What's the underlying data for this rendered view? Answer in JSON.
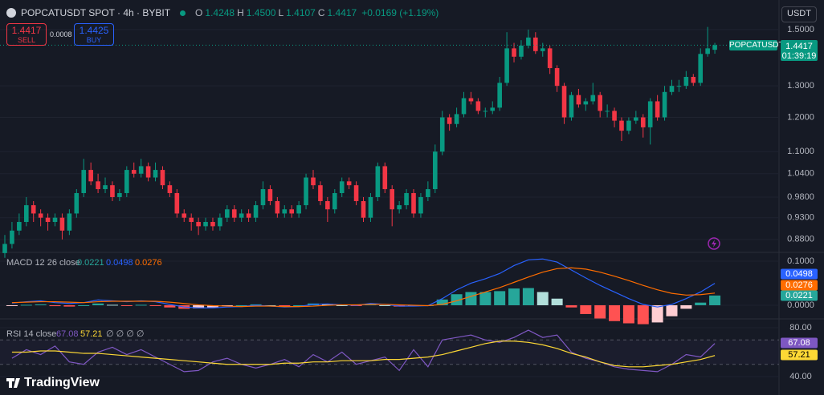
{
  "header": {
    "symbol": "POPCATUSDT SPOT · 4h · BYBIT",
    "ohlc": [
      {
        "key": "O",
        "value": "1.4248"
      },
      {
        "key": "H",
        "value": "1.4500"
      },
      {
        "key": "L",
        "value": "1.4107"
      },
      {
        "key": "C",
        "value": "1.4417"
      }
    ],
    "change": "+0.0169 (+1.19%)",
    "sell": {
      "price": "1.4417",
      "label": "SELL"
    },
    "spread": "0.0008",
    "buy": {
      "price": "1.4425",
      "label": "BUY"
    },
    "currency": "USDT"
  },
  "price": {
    "type": "candlestick",
    "log_scale": true,
    "up_color": "#089981",
    "down_color": "#f23645",
    "ylim": [
      0.855,
      1.617
    ],
    "yticks": [
      {
        "value": 1.5,
        "label": "1.5000"
      },
      {
        "value": 1.3,
        "label": "1.3000"
      },
      {
        "value": 1.2,
        "label": "1.2000"
      },
      {
        "value": 1.1,
        "label": "1.1000"
      },
      {
        "value": 1.04,
        "label": "1.0400"
      },
      {
        "value": 0.98,
        "label": "0.9800"
      },
      {
        "value": 0.93,
        "label": "0.9300"
      },
      {
        "value": 0.88,
        "label": "0.8800"
      }
    ],
    "last": {
      "symbol": "POPCATUSDT",
      "price": "1.4417",
      "countdown": "01:39:19"
    },
    "candles": [
      [
        0.85,
        0.89,
        0.84,
        0.87
      ],
      [
        0.87,
        0.92,
        0.86,
        0.9
      ],
      [
        0.9,
        0.94,
        0.89,
        0.92
      ],
      [
        0.92,
        0.98,
        0.91,
        0.96
      ],
      [
        0.96,
        0.97,
        0.92,
        0.94
      ],
      [
        0.94,
        0.95,
        0.91,
        0.93
      ],
      [
        0.93,
        0.94,
        0.9,
        0.92
      ],
      [
        0.92,
        0.94,
        0.91,
        0.93
      ],
      [
        0.93,
        0.94,
        0.88,
        0.9
      ],
      [
        0.9,
        0.95,
        0.89,
        0.94
      ],
      [
        0.94,
        1.0,
        0.93,
        0.99
      ],
      [
        0.99,
        1.08,
        0.98,
        1.05
      ],
      [
        1.05,
        1.07,
        1.01,
        1.02
      ],
      [
        1.02,
        1.04,
        0.99,
        1.0
      ],
      [
        1.0,
        1.03,
        0.99,
        1.01
      ],
      [
        1.01,
        1.02,
        0.97,
        0.98
      ],
      [
        0.98,
        1.0,
        0.97,
        0.99
      ],
      [
        0.99,
        1.06,
        0.98,
        1.05
      ],
      [
        1.05,
        1.07,
        1.03,
        1.04
      ],
      [
        1.04,
        1.08,
        1.03,
        1.06
      ],
      [
        1.06,
        1.07,
        1.02,
        1.03
      ],
      [
        1.03,
        1.07,
        1.02,
        1.05
      ],
      [
        1.05,
        1.06,
        1.0,
        1.01
      ],
      [
        1.01,
        1.02,
        0.98,
        0.99
      ],
      [
        0.99,
        1.0,
        0.93,
        0.94
      ],
      [
        0.94,
        0.95,
        0.92,
        0.93
      ],
      [
        0.93,
        0.94,
        0.9,
        0.92
      ],
      [
        0.92,
        0.93,
        0.89,
        0.91
      ],
      [
        0.91,
        0.93,
        0.9,
        0.92
      ],
      [
        0.92,
        0.93,
        0.9,
        0.91
      ],
      [
        0.91,
        0.94,
        0.9,
        0.93
      ],
      [
        0.93,
        0.96,
        0.92,
        0.95
      ],
      [
        0.95,
        0.96,
        0.92,
        0.93
      ],
      [
        0.93,
        0.95,
        0.92,
        0.94
      ],
      [
        0.94,
        0.95,
        0.92,
        0.93
      ],
      [
        0.93,
        0.97,
        0.92,
        0.96
      ],
      [
        0.96,
        1.02,
        0.95,
        1.0
      ],
      [
        1.0,
        1.01,
        0.96,
        0.97
      ],
      [
        0.97,
        0.98,
        0.93,
        0.94
      ],
      [
        0.94,
        0.96,
        0.93,
        0.95
      ],
      [
        0.95,
        0.96,
        0.93,
        0.94
      ],
      [
        0.94,
        0.97,
        0.93,
        0.96
      ],
      [
        0.96,
        1.04,
        0.95,
        1.03
      ],
      [
        1.03,
        1.05,
        1.0,
        1.01
      ],
      [
        1.01,
        1.02,
        0.96,
        0.97
      ],
      [
        0.97,
        0.98,
        0.92,
        0.95
      ],
      [
        0.95,
        1.0,
        0.94,
        0.99
      ],
      [
        0.99,
        1.03,
        0.98,
        1.02
      ],
      [
        1.02,
        1.03,
        1.0,
        1.01
      ],
      [
        1.01,
        1.02,
        0.96,
        0.97
      ],
      [
        0.97,
        0.98,
        0.92,
        0.93
      ],
      [
        0.93,
        0.99,
        0.92,
        0.98
      ],
      [
        0.98,
        1.07,
        0.97,
        1.06
      ],
      [
        1.06,
        1.07,
        0.99,
        1.0
      ],
      [
        1.0,
        1.01,
        0.91,
        0.95
      ],
      [
        0.95,
        0.97,
        0.94,
        0.96
      ],
      [
        0.96,
        1.0,
        0.95,
        0.99
      ],
      [
        0.99,
        1.0,
        0.93,
        0.94
      ],
      [
        0.94,
        0.99,
        0.93,
        0.98
      ],
      [
        0.98,
        1.02,
        0.97,
        1.0
      ],
      [
        1.0,
        1.12,
        0.99,
        1.1
      ],
      [
        1.1,
        1.22,
        1.09,
        1.2
      ],
      [
        1.2,
        1.21,
        1.16,
        1.18
      ],
      [
        1.18,
        1.23,
        1.17,
        1.21
      ],
      [
        1.21,
        1.28,
        1.2,
        1.26
      ],
      [
        1.26,
        1.28,
        1.24,
        1.25
      ],
      [
        1.25,
        1.26,
        1.21,
        1.22
      ],
      [
        1.22,
        1.23,
        1.2,
        1.22
      ],
      [
        1.22,
        1.25,
        1.21,
        1.23
      ],
      [
        1.23,
        1.33,
        1.22,
        1.31
      ],
      [
        1.31,
        1.49,
        1.3,
        1.43
      ],
      [
        1.43,
        1.45,
        1.38,
        1.4
      ],
      [
        1.4,
        1.46,
        1.39,
        1.44
      ],
      [
        1.44,
        1.5,
        1.43,
        1.47
      ],
      [
        1.47,
        1.49,
        1.41,
        1.42
      ],
      [
        1.42,
        1.45,
        1.4,
        1.43
      ],
      [
        1.43,
        1.44,
        1.34,
        1.36
      ],
      [
        1.36,
        1.37,
        1.28,
        1.3
      ],
      [
        1.3,
        1.31,
        1.18,
        1.2
      ],
      [
        1.2,
        1.28,
        1.19,
        1.27
      ],
      [
        1.27,
        1.29,
        1.23,
        1.24
      ],
      [
        1.24,
        1.26,
        1.22,
        1.25
      ],
      [
        1.25,
        1.31,
        1.24,
        1.27
      ],
      [
        1.27,
        1.28,
        1.2,
        1.22
      ],
      [
        1.22,
        1.24,
        1.2,
        1.22
      ],
      [
        1.22,
        1.23,
        1.17,
        1.19
      ],
      [
        1.19,
        1.2,
        1.13,
        1.16
      ],
      [
        1.16,
        1.2,
        1.15,
        1.19
      ],
      [
        1.19,
        1.22,
        1.18,
        1.2
      ],
      [
        1.2,
        1.21,
        1.14,
        1.17
      ],
      [
        1.17,
        1.26,
        1.12,
        1.25
      ],
      [
        1.25,
        1.27,
        1.19,
        1.2
      ],
      [
        1.2,
        1.3,
        1.19,
        1.28
      ],
      [
        1.28,
        1.32,
        1.27,
        1.3
      ],
      [
        1.3,
        1.32,
        1.28,
        1.3
      ],
      [
        1.3,
        1.35,
        1.29,
        1.33
      ],
      [
        1.33,
        1.34,
        1.3,
        1.31
      ],
      [
        1.31,
        1.43,
        1.3,
        1.41
      ],
      [
        1.41,
        1.51,
        1.4,
        1.43
      ],
      [
        1.4248,
        1.45,
        1.4107,
        1.4417
      ]
    ]
  },
  "macd": {
    "type": "line",
    "title": "MACD 12 26 close",
    "ylim": [
      -0.0255,
      0.1145
    ],
    "yticks": [
      {
        "value": 0.1,
        "label": "0.1000"
      },
      {
        "value": 0,
        "label": "0.0000"
      }
    ],
    "histogram": {
      "colors": [
        "#26a69a",
        "#b2dfdb",
        "#ff5252",
        "#ffcdd2"
      ],
      "values": [
        -0.001,
        0.001,
        0.002,
        -0.002,
        -0.003,
        0.0,
        0.004,
        0.001,
        -0.001,
        0.001,
        -0.001,
        -0.005,
        -0.008,
        -0.007,
        -0.005,
        -0.002,
        0.0,
        0.002,
        0.0,
        -0.001,
        0.0,
        0.004,
        0.003,
        0.0,
        -0.001,
        0.002,
        0.0,
        -0.003,
        -0.002,
        0.0,
        0.013,
        0.025,
        0.03,
        0.03,
        0.032,
        0.038,
        0.039,
        0.03,
        0.015,
        -0.005,
        -0.02,
        -0.03,
        -0.036,
        -0.041,
        -0.043,
        -0.039,
        -0.025,
        -0.008,
        0.006,
        0.0221
      ]
    },
    "series": [
      {
        "name": "MACD",
        "color": "#2962ff",
        "values": [
          0.005,
          0.008,
          0.01,
          0.006,
          0.004,
          0.006,
          0.012,
          0.01,
          0.008,
          0.01,
          0.008,
          0.002,
          -0.004,
          -0.006,
          -0.006,
          -0.004,
          -0.003,
          0.0,
          -0.002,
          -0.004,
          -0.003,
          0.002,
          0.003,
          0.001,
          0.0,
          0.004,
          0.002,
          -0.002,
          -0.002,
          -0.001,
          0.015,
          0.035,
          0.05,
          0.06,
          0.072,
          0.09,
          0.103,
          0.105,
          0.098,
          0.08,
          0.062,
          0.045,
          0.03,
          0.015,
          0.002,
          -0.004,
          0.002,
          0.015,
          0.03,
          0.0498
        ]
      },
      {
        "name": "Signal",
        "color": "#ff6d00",
        "values": [
          0.006,
          0.007,
          0.008,
          0.008,
          0.007,
          0.006,
          0.008,
          0.009,
          0.009,
          0.009,
          0.009,
          0.007,
          0.004,
          0.001,
          -0.001,
          -0.002,
          -0.003,
          -0.002,
          -0.002,
          -0.003,
          -0.003,
          -0.002,
          0.0,
          0.001,
          0.001,
          0.002,
          0.002,
          0.001,
          0.0,
          -0.001,
          0.002,
          0.01,
          0.02,
          0.03,
          0.04,
          0.052,
          0.064,
          0.075,
          0.083,
          0.085,
          0.082,
          0.075,
          0.066,
          0.056,
          0.045,
          0.035,
          0.027,
          0.023,
          0.024,
          0.0276
        ]
      }
    ]
  },
  "rsi": {
    "type": "line",
    "title": "RSI 14 close",
    "extra": "∅ ∅ ∅ ∅",
    "ylim": [
      28.2,
      84.6
    ],
    "yticks": [
      {
        "value": 80,
        "label": "80.00"
      },
      {
        "value": 40,
        "label": "40.00"
      }
    ],
    "bands": [
      70,
      50
    ],
    "series": [
      {
        "name": "RSI",
        "color": "#7e57c2",
        "values": [
          55,
          62,
          58,
          65,
          52,
          50,
          60,
          64,
          58,
          62,
          56,
          50,
          44,
          45,
          52,
          55,
          50,
          47,
          50,
          54,
          48,
          58,
          52,
          60,
          50,
          53,
          56,
          45,
          62,
          48,
          70,
          72,
          74,
          70,
          68,
          72,
          78,
          72,
          74,
          60,
          55,
          52,
          48,
          46,
          45,
          44,
          50,
          58,
          56,
          67.08
        ]
      },
      {
        "name": "RSI MA",
        "color": "#fdd835",
        "values": [
          60,
          60,
          61,
          61,
          60,
          59,
          59,
          58,
          57,
          56,
          55,
          54,
          53,
          52,
          51,
          50,
          50,
          50,
          50,
          51,
          51,
          52,
          52,
          53,
          53,
          53,
          54,
          54,
          55,
          56,
          58,
          61,
          64,
          67,
          69,
          69,
          68,
          66,
          63,
          59,
          56,
          52,
          49,
          48,
          48,
          49,
          50,
          52,
          54,
          57.21
        ]
      }
    ]
  },
  "brand": "TradingView"
}
